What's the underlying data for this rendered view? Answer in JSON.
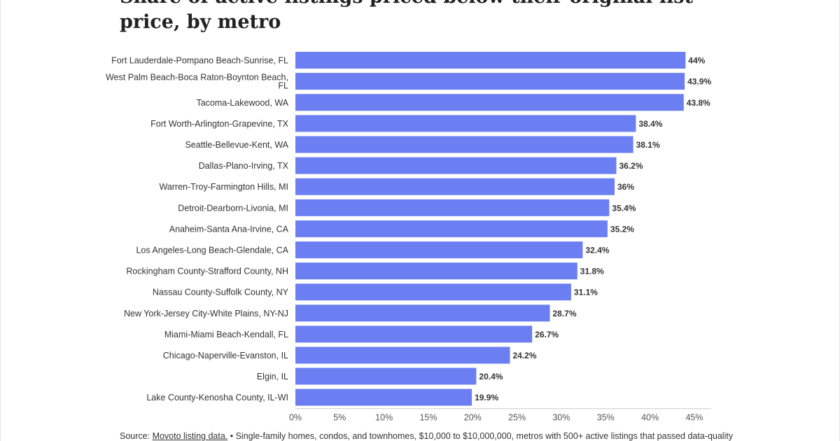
{
  "title": "Share of active listings priced below their original list price, by metro",
  "source": {
    "prefix": "Source: ",
    "link_text": "Movoto listing data.",
    "bullet": " • ",
    "note": "Single-family homes, condos, and townhomes, $10,000 to $10,000,000, metros with 500+ active listings that passed data-quality"
  },
  "colors": {
    "bar": "#6b7ff2",
    "axis": "#cccccc",
    "text": "#333333"
  },
  "chart_data": {
    "type": "bar",
    "orientation": "horizontal",
    "title": "Share of active listings priced below their original list price, by metro",
    "xlabel": "",
    "ylabel": "",
    "xlim": [
      0,
      45
    ],
    "x_ticks": [
      "0%",
      "5%",
      "10%",
      "15%",
      "20%",
      "25%",
      "30%",
      "35%",
      "40%",
      "45%"
    ],
    "grid": false,
    "categories": [
      [
        "Fort Lauderdale-Pompano Beach-Sunrise, FL"
      ],
      [
        "West Palm Beach-Boca Raton-Boynton Beach,",
        "FL"
      ],
      [
        "Tacoma-Lakewood, WA"
      ],
      [
        "Fort Worth-Arlington-Grapevine, TX"
      ],
      [
        "Seattle-Bellevue-Kent, WA"
      ],
      [
        "Dallas-Plano-Irving, TX"
      ],
      [
        "Warren-Troy-Farmington Hills, MI"
      ],
      [
        "Detroit-Dearborn-Livonia, MI"
      ],
      [
        "Anaheim-Santa Ana-Irvine, CA"
      ],
      [
        "Los Angeles-Long Beach-Glendale, CA"
      ],
      [
        "Rockingham County-Strafford County, NH"
      ],
      [
        "Nassau County-Suffolk County, NY"
      ],
      [
        "New York-Jersey City-White Plains, NY-NJ"
      ],
      [
        "Miami-Miami Beach-Kendall, FL"
      ],
      [
        "Chicago-Naperville-Evanston, IL"
      ],
      [
        "Elgin, IL"
      ],
      [
        "Lake County-Kenosha County, IL-WI"
      ]
    ],
    "values": [
      44,
      43.9,
      43.8,
      38.4,
      38.1,
      36.2,
      36,
      35.4,
      35.2,
      32.4,
      31.8,
      31.1,
      28.7,
      26.7,
      24.2,
      20.4,
      19.9
    ],
    "value_labels": [
      "44%",
      "43.9%",
      "43.8%",
      "38.4%",
      "38.1%",
      "36.2%",
      "36%",
      "35.4%",
      "35.2%",
      "32.4%",
      "31.8%",
      "31.1%",
      "28.7%",
      "26.7%",
      "24.2%",
      "20.4%",
      "19.9%"
    ]
  }
}
